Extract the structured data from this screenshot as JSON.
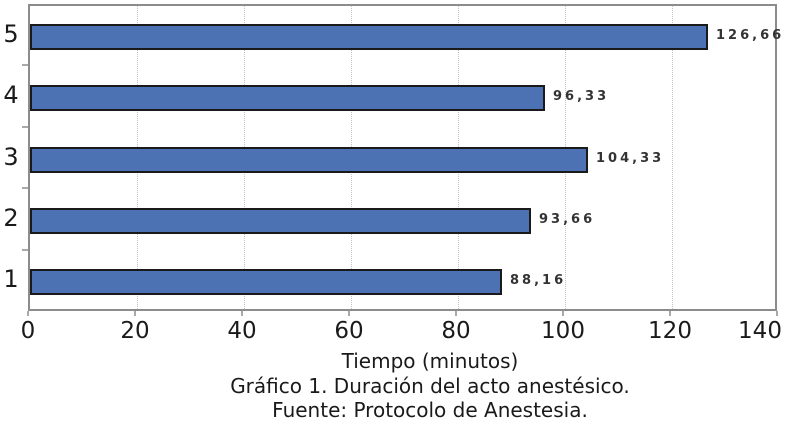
{
  "chart_data": {
    "type": "bar",
    "orientation": "horizontal",
    "title": "",
    "xlabel": "Tiempo (minutos)",
    "ylabel": "",
    "categories": [
      "5",
      "4",
      "3",
      "2",
      "1"
    ],
    "values": [
      126.66,
      96.33,
      104.33,
      93.66,
      88.16
    ],
    "value_labels": [
      "126,66",
      "96,33",
      "104,33",
      "93,66",
      "88,16"
    ],
    "xlim": [
      0,
      140
    ],
    "xticks": [
      0,
      20,
      40,
      60,
      80,
      100,
      120,
      140
    ],
    "xtick_labels": [
      "0",
      "20",
      "40",
      "60",
      "80",
      "100",
      "120",
      "140"
    ],
    "grid": "vertical-dotted",
    "legend": "none",
    "bar_color": "#4c72b4",
    "bar_border_color": "#1a1a1a",
    "plot_border_color": "#8c8c8c",
    "caption_line1": "Gráfico 1. Duración del acto anestésico.",
    "caption_line2": "Fuente: Protocolo de Anestesia."
  }
}
